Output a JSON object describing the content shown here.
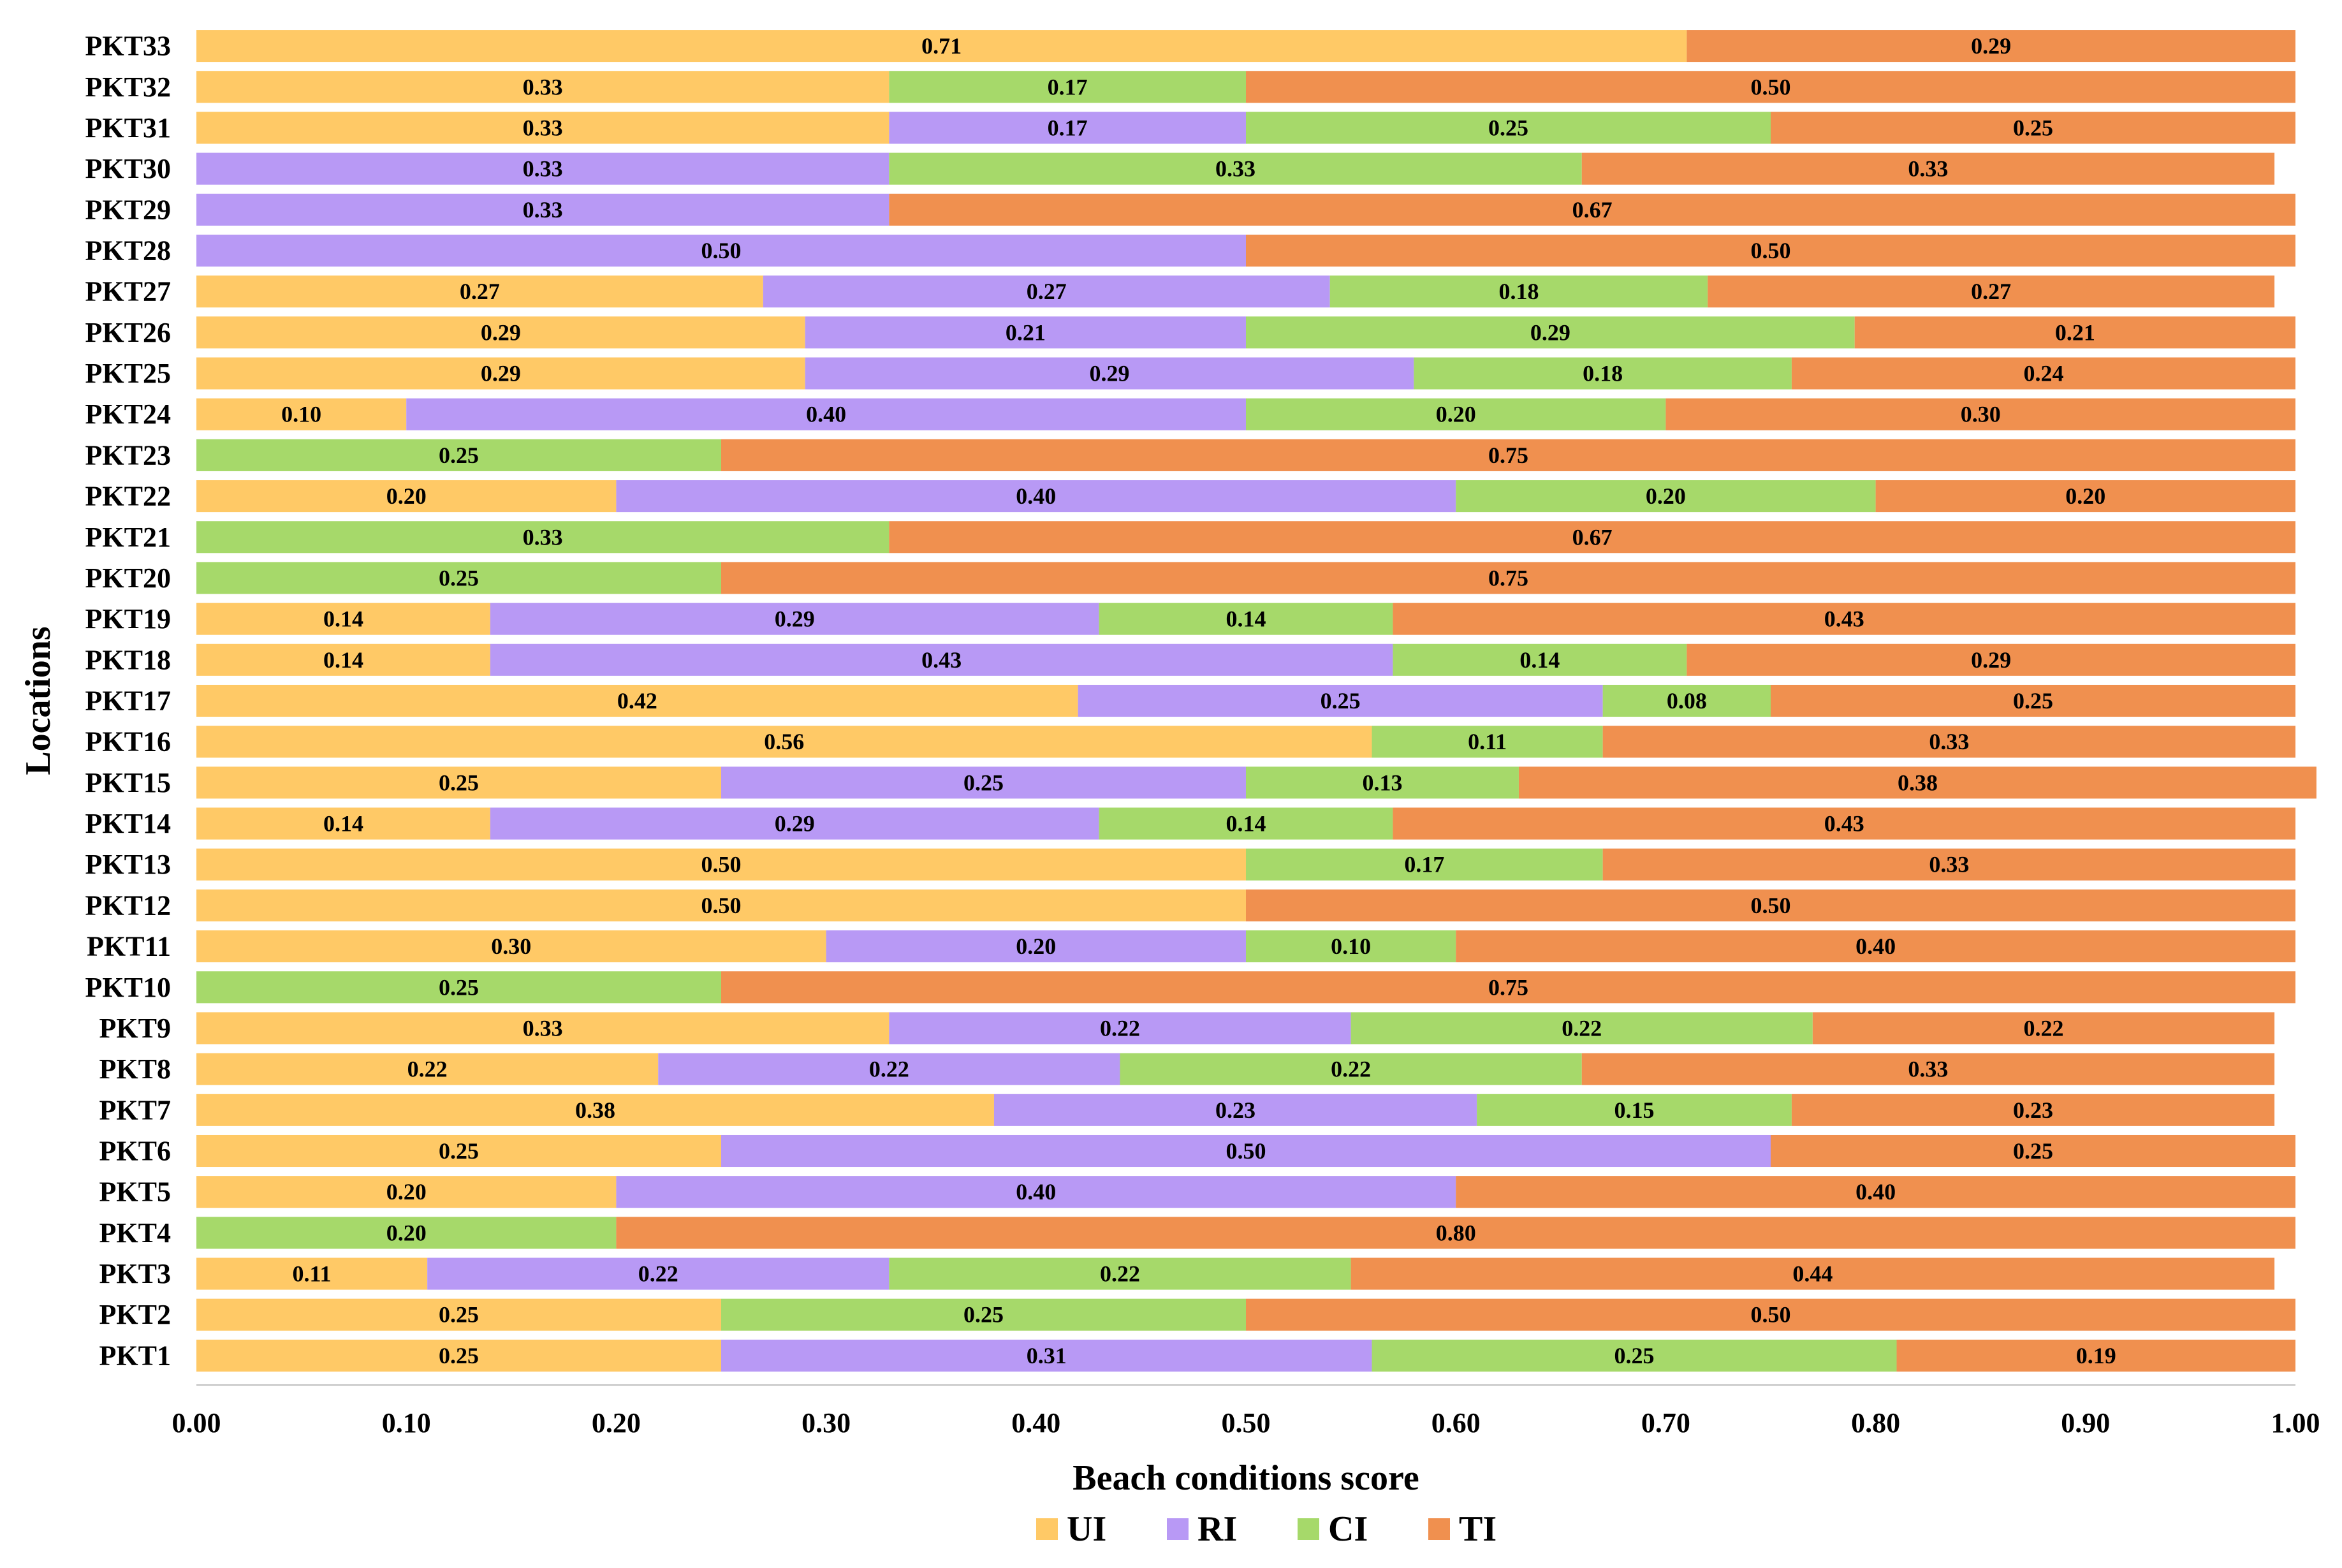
{
  "chart_data": {
    "type": "bar",
    "orientation": "horizontal",
    "stacked": true,
    "title": "",
    "xlabel": "Beach conditions score",
    "ylabel": "Locations",
    "xlim": [
      0,
      1
    ],
    "xticks": [
      "0.00",
      "0.10",
      "0.20",
      "0.30",
      "0.40",
      "0.50",
      "0.60",
      "0.70",
      "0.80",
      "0.90",
      "1.00"
    ],
    "grid": false,
    "legend_position": "bottom",
    "categories": [
      "PKT1",
      "PKT2",
      "PKT3",
      "PKT4",
      "PKT5",
      "PKT6",
      "PKT7",
      "PKT8",
      "PKT9",
      "PKT10",
      "PKT11",
      "PKT12",
      "PKT13",
      "PKT14",
      "PKT15",
      "PKT16",
      "PKT17",
      "PKT18",
      "PKT19",
      "PKT20",
      "PKT21",
      "PKT22",
      "PKT23",
      "PKT24",
      "PKT25",
      "PKT26",
      "PKT27",
      "PKT28",
      "PKT29",
      "PKT30",
      "PKT31",
      "PKT32",
      "PKT33"
    ],
    "series": [
      {
        "name": "UI",
        "color": "#FFC966",
        "values": [
          0.25,
          0.25,
          0.11,
          0,
          0.2,
          0.25,
          0.38,
          0.22,
          0.33,
          0,
          0.3,
          0.5,
          0.5,
          0.14,
          0.25,
          0.56,
          0.42,
          0.14,
          0.14,
          0,
          0,
          0.2,
          0,
          0.1,
          0.29,
          0.29,
          0.27,
          0,
          0,
          0,
          0.33,
          0.33,
          0.71
        ]
      },
      {
        "name": "RI",
        "color": "#B899F5",
        "values": [
          0.31,
          0,
          0.22,
          0,
          0.4,
          0.5,
          0.23,
          0.22,
          0.22,
          0,
          0.2,
          0,
          0,
          0.29,
          0.25,
          0,
          0.25,
          0.43,
          0.29,
          0,
          0,
          0.4,
          0,
          0.4,
          0.29,
          0.21,
          0.27,
          0.5,
          0.33,
          0.33,
          0.17,
          0,
          0
        ]
      },
      {
        "name": "CI",
        "color": "#A6D96A",
        "values": [
          0.25,
          0.25,
          0.22,
          0.2,
          0,
          0,
          0.15,
          0.22,
          0.22,
          0.25,
          0.1,
          0,
          0.17,
          0.14,
          0.13,
          0.11,
          0.08,
          0.14,
          0.14,
          0.25,
          0.33,
          0.2,
          0.25,
          0.2,
          0.18,
          0.29,
          0.18,
          0,
          0,
          0.33,
          0.25,
          0.17,
          0
        ]
      },
      {
        "name": "TI",
        "color": "#F0904F",
        "values": [
          0.19,
          0.5,
          0.44,
          0.8,
          0.4,
          0.25,
          0.23,
          0.33,
          0.22,
          0.75,
          0.4,
          0.5,
          0.33,
          0.43,
          0.38,
          0.33,
          0.25,
          0.29,
          0.43,
          0.75,
          0.67,
          0.2,
          0.75,
          0.3,
          0.24,
          0.21,
          0.27,
          0.5,
          0.67,
          0.33,
          0.25,
          0.5,
          0.29
        ]
      }
    ]
  }
}
